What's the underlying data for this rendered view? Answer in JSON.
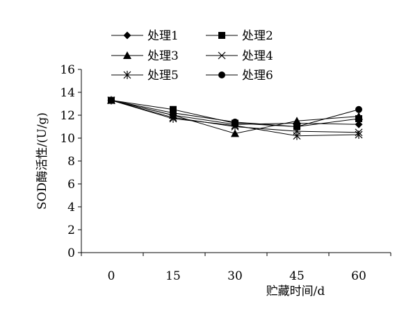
{
  "chart_data": {
    "type": "line",
    "title": "",
    "xlabel": "贮藏时间/d",
    "ylabel": "SOD酶活性/(U/g)",
    "x": [
      0,
      15,
      30,
      45,
      60
    ],
    "x_tick_labels": [
      "0",
      "15",
      "30",
      "45",
      "60"
    ],
    "ylim": [
      0,
      16
    ],
    "y_ticks": [
      0,
      2,
      4,
      6,
      8,
      10,
      12,
      14,
      16
    ],
    "y_tick_labels": [
      "0",
      "2",
      "4",
      "6",
      "8",
      "10",
      "12",
      "14",
      "16"
    ],
    "grid": false,
    "legend_position": "top",
    "series": [
      {
        "name": "处理1",
        "marker": "diamond",
        "values": [
          13.3,
          12.0,
          11.2,
          11.3,
          11.2
        ]
      },
      {
        "name": "处理2",
        "marker": "square",
        "values": [
          13.3,
          12.5,
          11.3,
          11.0,
          11.7
        ]
      },
      {
        "name": "处理3",
        "marker": "triangle",
        "values": [
          13.3,
          12.0,
          10.4,
          11.5,
          11.9
        ]
      },
      {
        "name": "处理4",
        "marker": "x",
        "values": [
          13.3,
          11.8,
          11.0,
          10.6,
          10.5
        ]
      },
      {
        "name": "处理5",
        "marker": "asterisk",
        "values": [
          13.3,
          11.7,
          11.1,
          10.2,
          10.3
        ]
      },
      {
        "name": "处理6",
        "marker": "circle",
        "values": [
          13.3,
          12.2,
          11.4,
          11.0,
          12.5
        ]
      }
    ]
  }
}
